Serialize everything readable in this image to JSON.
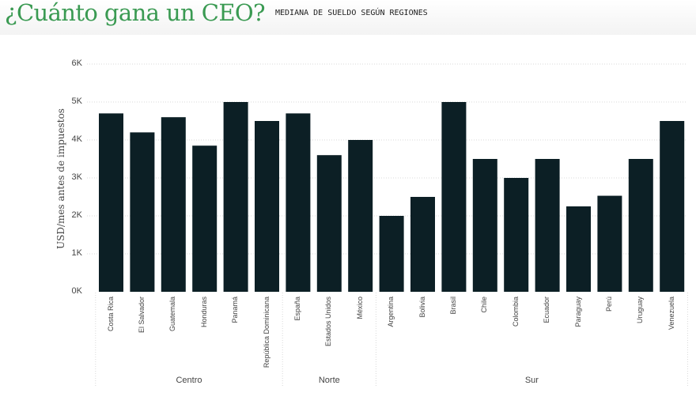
{
  "header": {
    "title": "¿Cuánto gana un CEO?",
    "subtitle": "MEDIANA DE SUELDO SEGÚN REGIONES"
  },
  "colors": {
    "bar": "#0c1f25",
    "title": "#3a9a52",
    "grid": "#d9d9d9",
    "text": "#444444"
  },
  "chart_data": {
    "type": "bar",
    "title": "¿Cuánto gana un CEO?",
    "subtitle": "MEDIANA DE SUELDO SEGÚN REGIONES",
    "ylabel": "USD/mes antes de impuestos",
    "xlabel": "",
    "ylim": [
      0,
      6000
    ],
    "yticks": [
      {
        "value": 0,
        "label": "0K"
      },
      {
        "value": 1000,
        "label": "1K"
      },
      {
        "value": 2000,
        "label": "2K"
      },
      {
        "value": 3000,
        "label": "3K"
      },
      {
        "value": 4000,
        "label": "4K"
      },
      {
        "value": 5000,
        "label": "5K"
      },
      {
        "value": 6000,
        "label": "6K"
      }
    ],
    "grid": true,
    "groups": [
      {
        "name": "Centro",
        "categories": [
          "Costa Rica",
          "El Salvador",
          "Guatemala",
          "Honduras",
          "Panamá",
          "República Dominicana"
        ]
      },
      {
        "name": "Norte",
        "categories": [
          "España",
          "Estados Unidos",
          "México"
        ]
      },
      {
        "name": "Sur",
        "categories": [
          "Argentina",
          "Bolivia",
          "Brasil",
          "Chile",
          "Colombia",
          "Ecuador",
          "Paraguay",
          "Perú",
          "Uruguay",
          "Venezuela"
        ]
      }
    ],
    "categories": [
      "Costa Rica",
      "El Salvador",
      "Guatemala",
      "Honduras",
      "Panamá",
      "República Dominicana",
      "España",
      "Estados Unidos",
      "México",
      "Argentina",
      "Bolivia",
      "Brasil",
      "Chile",
      "Colombia",
      "Ecuador",
      "Paraguay",
      "Perú",
      "Uruguay",
      "Venezuela"
    ],
    "values": [
      4700,
      4200,
      4600,
      3850,
      5000,
      4500,
      4700,
      3600,
      4000,
      2000,
      2500,
      5000,
      3500,
      3000,
      3500,
      2250,
      2530,
      3500,
      4500
    ]
  }
}
